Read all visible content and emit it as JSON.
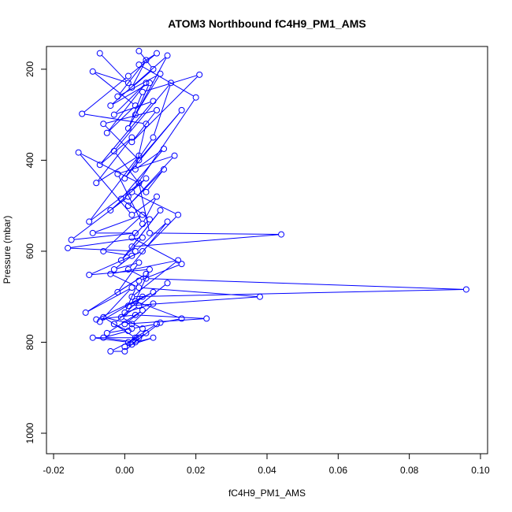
{
  "chart_data": {
    "type": "scatter",
    "title": "ATOM3 Northbound fC4H9_PM1_AMS",
    "xlabel": "fC4H9_PM1_AMS",
    "ylabel": "Pressure (mbar)",
    "xlim": [
      -0.022,
      0.102
    ],
    "ylim": [
      1045,
      150
    ],
    "y_reversed": true,
    "x_ticks": [
      {
        "value": -0.02,
        "label": "-0.02"
      },
      {
        "value": 0.0,
        "label": "0.00"
      },
      {
        "value": 0.02,
        "label": "0.02"
      },
      {
        "value": 0.04,
        "label": "0.04"
      },
      {
        "value": 0.06,
        "label": "0.06"
      },
      {
        "value": 0.08,
        "label": "0.08"
      },
      {
        "value": 0.1,
        "label": "0.10"
      }
    ],
    "y_ticks": [
      {
        "value": 200,
        "label": "200"
      },
      {
        "value": 400,
        "label": "400"
      },
      {
        "value": 600,
        "label": "600"
      },
      {
        "value": 800,
        "label": "800"
      },
      {
        "value": 1000,
        "label": "1000"
      }
    ],
    "grid": false,
    "series_color": "#0000ff",
    "series": [
      {
        "style": "line+points",
        "points": [
          [
            0.004,
            160
          ],
          [
            0.008,
            200
          ],
          [
            0.002,
            240
          ],
          [
            0.006,
            180
          ],
          [
            -0.002,
            260
          ],
          [
            0.01,
            210
          ],
          [
            0.003,
            300
          ],
          [
            0.007,
            230
          ],
          [
            -0.004,
            280
          ],
          [
            0.012,
            170
          ],
          [
            0.001,
            330
          ],
          [
            0.005,
            250
          ],
          [
            0.021,
            212
          ],
          [
            0.002,
            360
          ],
          [
            0.009,
            290
          ],
          [
            -0.006,
            320
          ],
          [
            0.004,
            400
          ],
          [
            0.016,
            290
          ],
          [
            0.0,
            440
          ],
          [
            0.008,
            350
          ],
          [
            0.013,
            230
          ],
          [
            -0.003,
            380
          ],
          [
            0.006,
            470
          ],
          [
            0.011,
            420
          ],
          [
            0.001,
            500
          ],
          [
            0.014,
            390
          ],
          [
            -0.002,
            430
          ],
          [
            0.005,
            540
          ],
          [
            0.009,
            480
          ],
          [
            0.002,
            520
          ],
          [
            -0.013,
            383
          ],
          [
            0.004,
            450
          ],
          [
            0.007,
            560
          ],
          [
            0.044,
            563
          ],
          [
            0.002,
            590
          ],
          [
            0.01,
            510
          ],
          [
            -0.001,
            620
          ],
          [
            0.005,
            570
          ],
          [
            -0.016,
            593
          ],
          [
            0.003,
            600
          ],
          [
            0.012,
            535
          ],
          [
            0.001,
            640
          ],
          [
            0.006,
            660
          ],
          [
            0.096,
            684
          ],
          [
            0.002,
            700
          ],
          [
            0.015,
            620
          ],
          [
            -0.004,
            650
          ],
          [
            0.004,
            680
          ],
          [
            0.038,
            700
          ],
          [
            0.001,
            720
          ],
          [
            0.008,
            690
          ],
          [
            -0.008,
            750
          ],
          [
            0.003,
            740
          ],
          [
            0.023,
            748
          ],
          [
            0.0,
            760
          ],
          [
            0.005,
            730
          ],
          [
            -0.005,
            780
          ],
          [
            0.002,
            770
          ],
          [
            0.009,
            760
          ],
          [
            0.001,
            800
          ],
          [
            -0.009,
            790
          ],
          [
            0.004,
            790
          ],
          [
            0.0,
            820
          ],
          [
            -0.004,
            820
          ],
          [
            0.006,
            780
          ],
          [
            0.002,
            805
          ],
          [
            0.01,
            757
          ],
          [
            0.016,
            748
          ],
          [
            0.003,
            710
          ],
          [
            0.007,
            640
          ],
          [
            -0.01,
            652
          ],
          [
            0.005,
            600
          ],
          [
            0.015,
            520
          ],
          [
            0.002,
            470
          ],
          [
            0.02,
            262
          ],
          [
            0.004,
            190
          ],
          [
            0.009,
            165
          ],
          [
            0.001,
            215
          ],
          [
            -0.012,
            298
          ],
          [
            0.006,
            320
          ],
          [
            0.003,
            420
          ],
          [
            0.011,
            375
          ],
          [
            -0.001,
            485
          ],
          [
            0.007,
            530
          ],
          [
            0.002,
            570
          ],
          [
            0.016,
            628
          ],
          [
            0.004,
            665
          ],
          [
            0.0,
            735
          ],
          [
            0.008,
            715
          ],
          [
            0.002,
            760
          ],
          [
            -0.006,
            745
          ],
          [
            0.003,
            790
          ]
        ]
      },
      {
        "style": "line+points",
        "points": [
          [
            -0.007,
            165
          ],
          [
            0.001,
            230
          ],
          [
            -0.009,
            205
          ],
          [
            0.003,
            280
          ],
          [
            -0.005,
            340
          ],
          [
            0.006,
            230
          ],
          [
            -0.003,
            300
          ],
          [
            0.008,
            270
          ],
          [
            -0.007,
            410
          ],
          [
            0.002,
            350
          ],
          [
            -0.008,
            450
          ],
          [
            0.004,
            390
          ],
          [
            -0.01,
            535
          ],
          [
            0.006,
            440
          ],
          [
            -0.004,
            510
          ],
          [
            0.001,
            480
          ],
          [
            -0.015,
            575
          ],
          [
            0.003,
            560
          ],
          [
            -0.009,
            560
          ],
          [
            0.005,
            520
          ],
          [
            -0.006,
            600
          ],
          [
            0.002,
            610
          ],
          [
            -0.003,
            640
          ],
          [
            0.004,
            625
          ],
          [
            -0.002,
            690
          ],
          [
            0.006,
            650
          ],
          [
            -0.011,
            735
          ],
          [
            0.002,
            680
          ],
          [
            -0.007,
            755
          ],
          [
            0.005,
            700
          ],
          [
            -0.003,
            760
          ],
          [
            0.001,
            775
          ],
          [
            -0.006,
            790
          ],
          [
            0.003,
            800
          ],
          [
            0.008,
            790
          ],
          [
            0.0,
            810
          ],
          [
            0.005,
            770
          ],
          [
            -0.001,
            745
          ],
          [
            0.004,
            720
          ],
          [
            0.012,
            670
          ]
        ]
      }
    ]
  }
}
